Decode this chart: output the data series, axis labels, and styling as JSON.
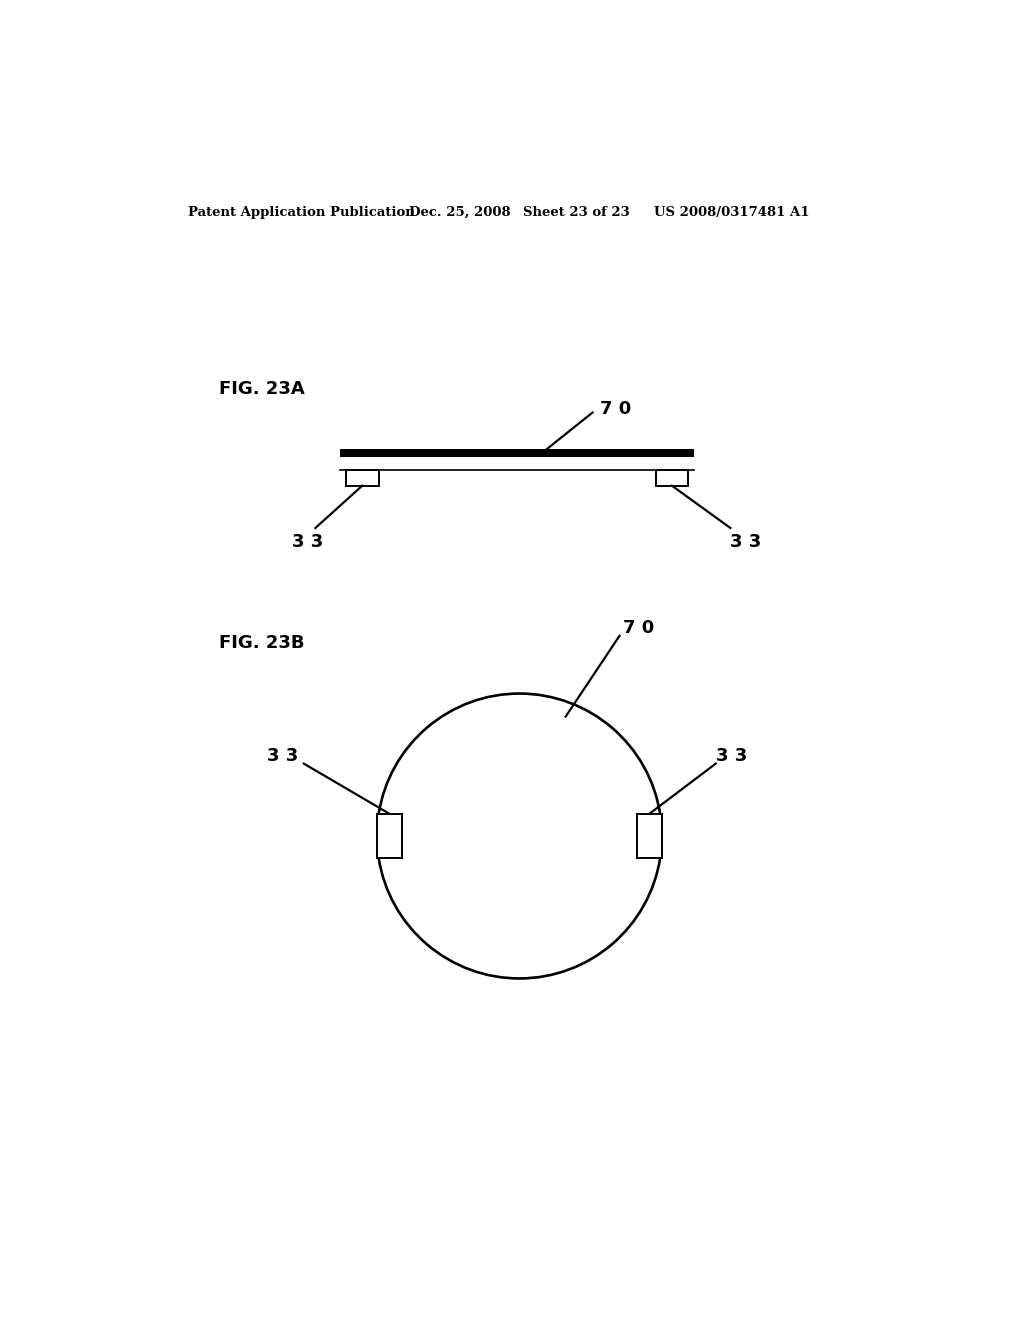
{
  "bg_color": "#ffffff",
  "header_text": "Patent Application Publication",
  "header_date": "Dec. 25, 2008",
  "header_sheet": "Sheet 23 of 23",
  "header_patent": "US 2008/0317481 A1",
  "fig23a_label": "FIG. 23A",
  "fig23b_label": "FIG. 23B",
  "label_70": "7 0",
  "label_33": "3 3",
  "line_color": "#000000",
  "line_width": 1.6
}
